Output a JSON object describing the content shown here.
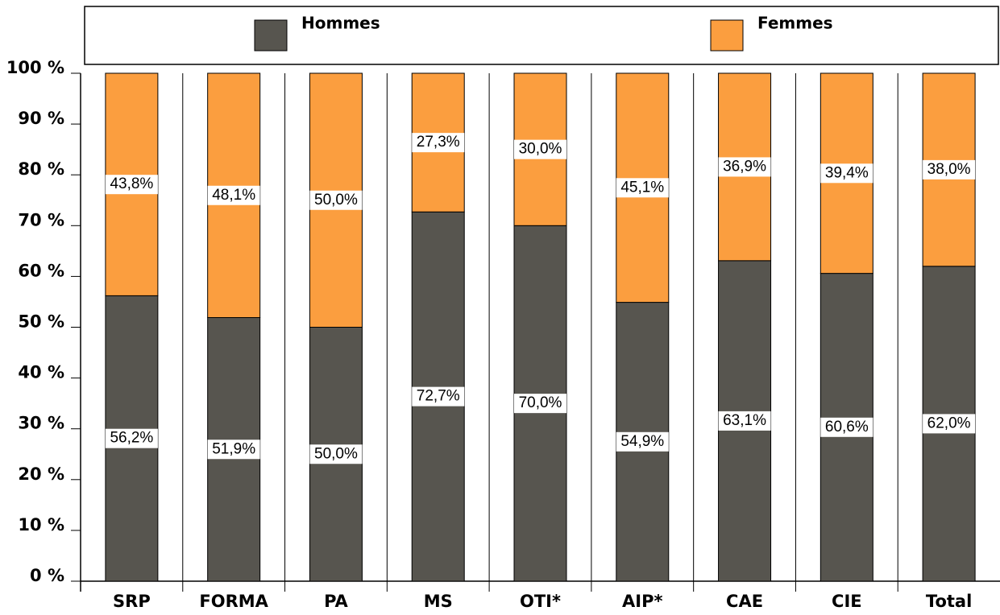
{
  "chart_data": {
    "type": "stacked_bar_100",
    "categories": [
      "SRP",
      "FORMA",
      "PA",
      "MS",
      "OTI*",
      "AIP*",
      "CAE",
      "CIE",
      "Total"
    ],
    "series": [
      {
        "name": "Hommes",
        "color": "#57554f",
        "values": [
          56.2,
          51.9,
          50.0,
          72.7,
          70.0,
          54.9,
          63.1,
          60.6,
          62.0
        ],
        "value_labels": [
          "56,2%",
          "51,9%",
          "50,0%",
          "72,7%",
          "70,0%",
          "54,9%",
          "63,1%",
          "60,6%",
          "62,0%"
        ]
      },
      {
        "name": "Femmes",
        "color": "#fb9e3f",
        "values": [
          43.8,
          48.1,
          50.0,
          27.3,
          30.0,
          45.1,
          36.9,
          39.4,
          38.0
        ],
        "value_labels": [
          "43,8%",
          "48,1%",
          "50,0%",
          "27,3%",
          "30,0%",
          "45,1%",
          "36,9%",
          "39,4%",
          "38,0%"
        ]
      }
    ],
    "ylim": [
      0,
      100
    ],
    "yticks": [
      {
        "value": 0,
        "label": "0 %"
      },
      {
        "value": 10,
        "label": "10 %"
      },
      {
        "value": 20,
        "label": "20 %"
      },
      {
        "value": 30,
        "label": "30 %"
      },
      {
        "value": 40,
        "label": "40 %"
      },
      {
        "value": 50,
        "label": "50 %"
      },
      {
        "value": 60,
        "label": "60 %"
      },
      {
        "value": 70,
        "label": "70 %"
      },
      {
        "value": 80,
        "label": "80 %"
      },
      {
        "value": 90,
        "label": "90 %"
      },
      {
        "value": 100,
        "label": "100 %"
      }
    ]
  }
}
